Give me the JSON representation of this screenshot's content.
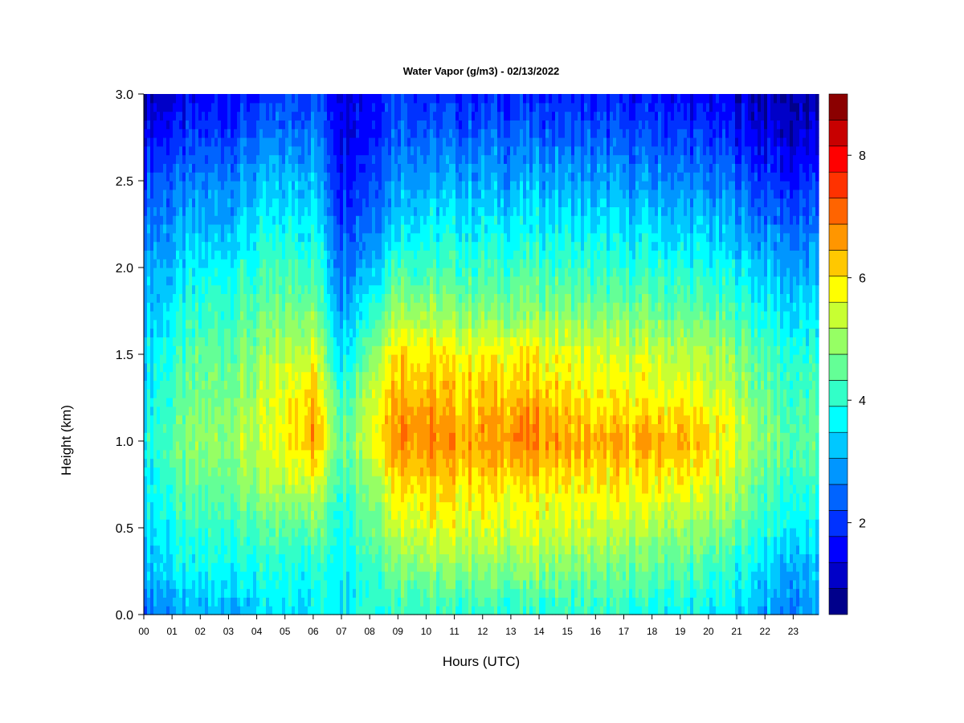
{
  "chart_data": {
    "type": "heatmap",
    "title": "Water Vapor (g/m3) - 02/13/2022",
    "xlabel": "Hours (UTC)",
    "ylabel": "Height (km)",
    "xlim": [
      0,
      23.9
    ],
    "ylim": [
      0.0,
      3.0
    ],
    "x_tick_labels": [
      "00",
      "01",
      "02",
      "03",
      "04",
      "05",
      "06",
      "07",
      "08",
      "09",
      "10",
      "11",
      "12",
      "13",
      "14",
      "15",
      "16",
      "17",
      "18",
      "19",
      "20",
      "21",
      "22",
      "23"
    ],
    "y_tick_labels": [
      "0.0",
      "0.5",
      "1.0",
      "1.5",
      "2.0",
      "2.5",
      "3.0"
    ],
    "x_hours": [
      0,
      1,
      2,
      3,
      4,
      5,
      6,
      7,
      8,
      9,
      10,
      11,
      12,
      13,
      14,
      15,
      16,
      17,
      18,
      19,
      20,
      21,
      22,
      23
    ],
    "y_km": [
      0.0,
      0.5,
      1.0,
      1.5,
      2.0,
      2.5,
      3.0
    ],
    "colorbar": {
      "range": [
        0.5,
        9.0
      ],
      "tick_values": [
        2,
        4,
        6,
        8
      ],
      "tick_labels": [
        "2",
        "4",
        "6",
        "8"
      ],
      "colors": [
        "#00008b",
        "#0000c8",
        "#0000ff",
        "#0032ff",
        "#0064ff",
        "#0096ff",
        "#00c8ff",
        "#00ffff",
        "#32ffc8",
        "#64ff96",
        "#96ff64",
        "#c8ff32",
        "#ffff00",
        "#ffc800",
        "#ff9600",
        "#ff6400",
        "#ff3200",
        "#ff0000",
        "#c80000",
        "#8b0000"
      ]
    },
    "time_hours": [
      0,
      1,
      2,
      3,
      4,
      5,
      6,
      7,
      8,
      9,
      10,
      11,
      12,
      13,
      14,
      15,
      16,
      17,
      18,
      19,
      20,
      21,
      22,
      23
    ],
    "profile_heights_km": [
      0.0,
      0.25,
      0.5,
      0.75,
      1.0,
      1.25,
      1.5,
      1.75,
      2.0,
      2.25,
      2.5,
      2.75,
      3.0
    ],
    "values": [
      [
        2.6,
        3.2,
        3.4,
        3.6,
        3.8,
        3.6,
        3.4,
        3.2,
        3.0,
        2.6,
        2.2,
        1.6,
        1.0
      ],
      [
        2.8,
        3.5,
        3.8,
        4.2,
        4.4,
        4.2,
        4.0,
        3.6,
        3.2,
        2.8,
        2.4,
        1.8,
        1.2
      ],
      [
        3.0,
        3.6,
        4.0,
        4.5,
        4.8,
        4.6,
        4.4,
        4.0,
        3.6,
        3.0,
        2.6,
        2.0,
        1.4
      ],
      [
        3.2,
        3.8,
        4.2,
        4.7,
        5.0,
        4.8,
        4.6,
        4.2,
        3.8,
        3.2,
        2.8,
        2.2,
        1.6
      ],
      [
        3.2,
        3.8,
        4.3,
        4.9,
        5.3,
        5.1,
        4.8,
        4.4,
        4.0,
        3.5,
        3.0,
        2.4,
        1.8
      ],
      [
        3.4,
        3.8,
        4.4,
        5.2,
        5.8,
        5.6,
        5.2,
        4.6,
        4.2,
        3.7,
        3.2,
        2.6,
        2.0
      ],
      [
        3.6,
        4.0,
        4.6,
        5.6,
        6.6,
        6.4,
        5.6,
        4.8,
        4.3,
        3.8,
        3.3,
        2.8,
        2.2
      ],
      [
        3.8,
        3.8,
        4.0,
        4.2,
        4.6,
        4.2,
        3.6,
        3.0,
        2.6,
        2.2,
        1.8,
        1.6,
        1.5
      ],
      [
        4.0,
        4.2,
        4.6,
        5.0,
        5.6,
        5.4,
        4.8,
        4.0,
        3.2,
        2.6,
        2.2,
        1.8,
        1.6
      ],
      [
        4.2,
        4.8,
        5.6,
        6.2,
        7.0,
        6.6,
        6.2,
        5.2,
        4.4,
        3.6,
        3.0,
        2.6,
        2.2
      ],
      [
        4.0,
        4.8,
        5.6,
        6.2,
        6.8,
        6.4,
        6.0,
        5.0,
        4.2,
        3.6,
        3.0,
        2.4,
        1.8
      ],
      [
        4.0,
        4.8,
        5.5,
        6.0,
        6.6,
        6.2,
        5.8,
        4.8,
        4.2,
        3.6,
        3.0,
        2.4,
        1.8
      ],
      [
        4.0,
        4.8,
        5.5,
        6.0,
        6.6,
        6.2,
        5.8,
        4.8,
        4.2,
        3.6,
        3.0,
        2.4,
        1.8
      ],
      [
        4.0,
        4.8,
        5.5,
        6.0,
        6.8,
        6.4,
        5.8,
        4.8,
        4.2,
        3.6,
        3.0,
        2.4,
        1.8
      ],
      [
        4.0,
        4.8,
        5.5,
        6.0,
        6.8,
        6.4,
        5.8,
        4.8,
        4.2,
        3.6,
        3.0,
        2.4,
        1.8
      ],
      [
        4.0,
        4.7,
        5.4,
        5.9,
        6.6,
        6.0,
        5.6,
        4.8,
        4.2,
        3.6,
        3.0,
        2.4,
        1.8
      ],
      [
        3.9,
        4.6,
        5.3,
        5.8,
        6.4,
        5.8,
        5.4,
        4.6,
        4.0,
        3.5,
        2.9,
        2.3,
        1.7
      ],
      [
        3.8,
        4.5,
        5.2,
        5.8,
        6.4,
        5.8,
        5.4,
        4.6,
        4.0,
        3.4,
        2.8,
        2.2,
        1.6
      ],
      [
        3.8,
        4.4,
        5.1,
        5.8,
        6.5,
        5.8,
        5.4,
        4.6,
        4.0,
        3.4,
        2.8,
        2.2,
        1.6
      ],
      [
        3.7,
        4.3,
        5.0,
        5.7,
        6.4,
        5.8,
        5.3,
        4.5,
        3.9,
        3.3,
        2.7,
        2.1,
        1.5
      ],
      [
        3.6,
        4.1,
        4.8,
        5.5,
        6.1,
        5.5,
        5.1,
        4.4,
        3.8,
        3.2,
        2.6,
        2.0,
        1.4
      ],
      [
        3.4,
        3.9,
        4.5,
        5.1,
        5.6,
        5.2,
        4.8,
        4.2,
        3.6,
        3.0,
        2.4,
        1.8,
        1.2
      ],
      [
        3.0,
        3.4,
        4.0,
        4.4,
        4.8,
        4.6,
        4.3,
        3.8,
        3.2,
        2.6,
        2.0,
        1.4,
        1.0
      ],
      [
        2.7,
        3.0,
        3.6,
        4.0,
        4.4,
        4.2,
        3.9,
        3.4,
        2.9,
        2.4,
        1.8,
        1.2,
        0.9
      ]
    ]
  }
}
